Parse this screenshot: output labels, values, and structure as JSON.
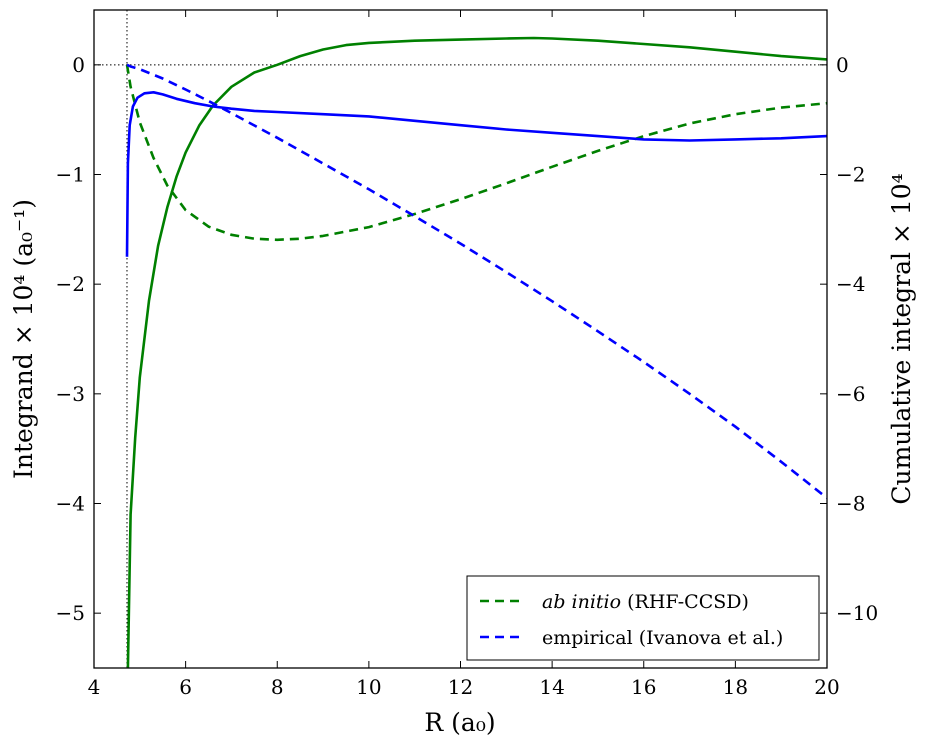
{
  "chart_data": {
    "type": "line",
    "title": "",
    "xlabel": "R (a₀)",
    "ylabel_left": "Integrand × 10⁴ (a₀⁻¹)",
    "ylabel_right": "Cumulative integral × 10⁴",
    "xlim": [
      4,
      20
    ],
    "ylim_left": [
      -5.5,
      0.5
    ],
    "ylim_right": [
      -11,
      1
    ],
    "x_ticks": [
      4,
      6,
      8,
      10,
      12,
      14,
      16,
      18,
      20
    ],
    "x_tick_labels": [
      "4",
      "6",
      "8",
      "10",
      "12",
      "14",
      "16",
      "18",
      "20"
    ],
    "y_left_ticks": [
      0,
      -1,
      -2,
      -3,
      -4,
      -5
    ],
    "y_left_tick_labels": [
      "0",
      "−1",
      "−2",
      "−3",
      "−4",
      "−5"
    ],
    "y_right_ticks": [
      0,
      -2,
      -4,
      -6,
      -8,
      -10
    ],
    "y_right_tick_labels": [
      "0",
      "−2",
      "−4",
      "−6",
      "−8",
      "−10"
    ],
    "reference_lines": {
      "x": 4.72,
      "y": 0
    },
    "grid": false,
    "legend_position": "bottom-right",
    "legend": [
      {
        "label_italic": "ab initio",
        "label_rest": " (RHF-CCSD)",
        "color": "#008000",
        "style": "dashed"
      },
      {
        "label_italic": "",
        "label_rest": "empirical (Ivanova et al.)",
        "color": "#0000ff",
        "style": "dashed"
      }
    ],
    "series": [
      {
        "axis": "left",
        "color": "#008000",
        "style": "solid",
        "x": [
          4.74,
          4.8,
          4.9,
          5.0,
          5.2,
          5.4,
          5.6,
          5.8,
          6.0,
          6.3,
          6.6,
          7.0,
          7.5,
          8.0,
          8.5,
          9.0,
          9.5,
          10.0,
          10.5,
          11.0,
          12.0,
          13.0,
          13.6,
          14.0,
          15.0,
          16.0,
          17.0,
          18.0,
          19.0,
          20.0
        ],
        "y": [
          -5.5,
          -4.1,
          -3.4,
          -2.85,
          -2.15,
          -1.65,
          -1.3,
          -1.02,
          -0.8,
          -0.55,
          -0.37,
          -0.2,
          -0.07,
          0.0,
          0.08,
          0.14,
          0.18,
          0.2,
          0.21,
          0.22,
          0.23,
          0.24,
          0.245,
          0.24,
          0.22,
          0.19,
          0.16,
          0.12,
          0.08,
          0.05
        ]
      },
      {
        "axis": "right",
        "color": "#008000",
        "style": "dashed",
        "x": [
          4.72,
          4.8,
          5.0,
          5.3,
          5.6,
          6.0,
          6.5,
          7.0,
          7.5,
          8.0,
          8.5,
          9.0,
          10.0,
          11.0,
          12.0,
          13.0,
          14.0,
          15.0,
          16.0,
          17.0,
          18.0,
          19.0,
          20.0
        ],
        "y": [
          0.0,
          -0.4,
          -1.05,
          -1.7,
          -2.2,
          -2.65,
          -2.95,
          -3.1,
          -3.17,
          -3.19,
          -3.17,
          -3.12,
          -2.96,
          -2.72,
          -2.45,
          -2.16,
          -1.86,
          -1.57,
          -1.3,
          -1.07,
          -0.9,
          -0.78,
          -0.7
        ]
      },
      {
        "axis": "left",
        "color": "#0000ff",
        "style": "solid",
        "x": [
          4.72,
          4.74,
          4.78,
          4.85,
          4.95,
          5.1,
          5.3,
          5.5,
          5.8,
          6.2,
          6.6,
          7.0,
          7.5,
          8.0,
          9.0,
          10.0,
          11.0,
          12.0,
          13.0,
          14.0,
          15.0,
          16.0,
          17.0,
          18.0,
          19.0,
          20.0
        ],
        "y": [
          -1.75,
          -0.9,
          -0.55,
          -0.38,
          -0.3,
          -0.26,
          -0.25,
          -0.27,
          -0.31,
          -0.35,
          -0.38,
          -0.4,
          -0.42,
          -0.43,
          -0.45,
          -0.47,
          -0.51,
          -0.55,
          -0.59,
          -0.62,
          -0.65,
          -0.68,
          -0.69,
          -0.68,
          -0.67,
          -0.65
        ]
      },
      {
        "axis": "right",
        "color": "#0000ff",
        "style": "dashed",
        "x": [
          4.72,
          4.8,
          5.0,
          5.5,
          6.0,
          6.5,
          7.0,
          8.0,
          9.0,
          10.0,
          11.0,
          12.0,
          13.0,
          14.0,
          15.0,
          16.0,
          17.0,
          18.0,
          19.0,
          20.0
        ],
        "y": [
          0.0,
          -0.03,
          -0.08,
          -0.25,
          -0.45,
          -0.66,
          -0.88,
          -1.33,
          -1.8,
          -2.27,
          -2.76,
          -3.26,
          -3.78,
          -4.31,
          -4.86,
          -5.42,
          -6.0,
          -6.6,
          -7.24,
          -7.9
        ]
      }
    ]
  }
}
